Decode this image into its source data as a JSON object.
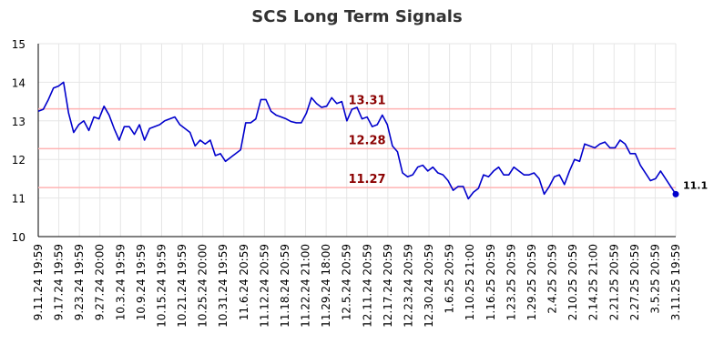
{
  "chart_data": {
    "type": "line",
    "title": "SCS Long Term Signals",
    "xlabel": "",
    "ylabel": "",
    "ylim": [
      10,
      15
    ],
    "y_ticks": [
      10,
      11,
      12,
      13,
      14,
      15
    ],
    "grid": true,
    "x_tick_labels": [
      "9.11.24 19:59",
      "9.17.24 19:59",
      "9.23.24 19:59",
      "9.27.24 20:00",
      "10.3.24 19:59",
      "10.9.24 19:59",
      "10.15.24 19:59",
      "10.21.24 19:59",
      "10.25.24 20:00",
      "10.31.24 19:59",
      "11.6.24 20:59",
      "11.12.24 20:59",
      "11.18.24 20:59",
      "11.22.24 21:00",
      "11.29.24 18:00",
      "12.5.24 20:59",
      "12.11.24 20:59",
      "12.17.24 20:59",
      "12.23.24 20:59",
      "12.30.24 20:59",
      "1.6.25 20:59",
      "1.10.25 21:00",
      "1.16.25 20:59",
      "1.23.25 20:59",
      "1.29.25 20:59",
      "2.4.25 20:59",
      "2.10.25 20:59",
      "2.14.25 21:00",
      "2.21.25 20:59",
      "2.27.25 20:59",
      "3.5.25 20:59",
      "3.11.25 19:59"
    ],
    "reference_lines": [
      {
        "value": 13.31,
        "label": "13.31"
      },
      {
        "value": 12.28,
        "label": "12.28"
      },
      {
        "value": 11.27,
        "label": "11.27"
      }
    ],
    "last_value_label": "11.1",
    "colors": {
      "line": "#0000cc",
      "reference": "#ffb3b3",
      "reference_label": "#8b0000",
      "grid": "#e6e6e6"
    },
    "series": [
      {
        "values": [
          13.25,
          13.3,
          13.55,
          13.85,
          13.9,
          14.0,
          13.2,
          12.7,
          12.9,
          13.0,
          12.75,
          13.1,
          13.05,
          13.38,
          13.15,
          12.8,
          12.5,
          12.85,
          12.85,
          12.65,
          12.9,
          12.5,
          12.8,
          12.85,
          12.9,
          13.0,
          13.05,
          13.1,
          12.9,
          12.8,
          12.7,
          12.35,
          12.5,
          12.4,
          12.5,
          12.1,
          12.15,
          11.95,
          12.05,
          12.15,
          12.25,
          12.95,
          12.95,
          13.05,
          13.55,
          13.55,
          13.25,
          13.15,
          13.1,
          13.05,
          12.98,
          12.95,
          12.95,
          13.2,
          13.6,
          13.45,
          13.35,
          13.38,
          13.6,
          13.45,
          13.5,
          13.0,
          13.3,
          13.35,
          13.05,
          13.1,
          12.85,
          12.9,
          13.15,
          12.9,
          12.35,
          12.2,
          11.65,
          11.55,
          11.6,
          11.8,
          11.85,
          11.7,
          11.8,
          11.65,
          11.6,
          11.45,
          11.2,
          11.3,
          11.3,
          10.98,
          11.15,
          11.25,
          11.6,
          11.55,
          11.7,
          11.8,
          11.6,
          11.6,
          11.8,
          11.7,
          11.6,
          11.6,
          11.65,
          11.5,
          11.1,
          11.3,
          11.55,
          11.6,
          11.35,
          11.7,
          12.0,
          11.95,
          12.4,
          12.35,
          12.3,
          12.4,
          12.45,
          12.3,
          12.3,
          12.5,
          12.4,
          12.15,
          12.15,
          11.85,
          11.65,
          11.45,
          11.5,
          11.7,
          11.5,
          11.3,
          11.1
        ]
      }
    ]
  }
}
